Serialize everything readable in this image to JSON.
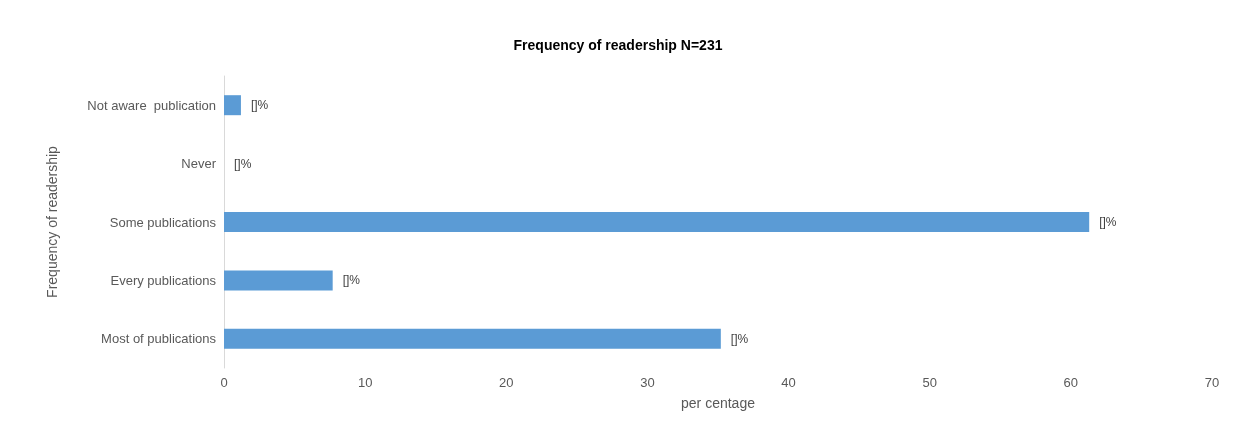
{
  "chart_data": {
    "type": "bar",
    "orientation": "horizontal",
    "title": "Frequency of readership N=231",
    "xlabel": "per centage",
    "ylabel": "Frequency of readership",
    "categories": [
      "Not aware  publication",
      "Never",
      "Some publications",
      "Every publications",
      "Most of publications"
    ],
    "values": [
      1.2,
      0,
      61.3,
      7.7,
      35.2
    ],
    "value_labels": [
      "[]%",
      "[]%",
      "[]%",
      "[]%",
      "[]%"
    ],
    "color": "#5b9bd5",
    "xlim": [
      0,
      70
    ],
    "xticks": [
      0,
      10,
      20,
      30,
      40,
      50,
      60,
      70
    ],
    "grid": false
  }
}
